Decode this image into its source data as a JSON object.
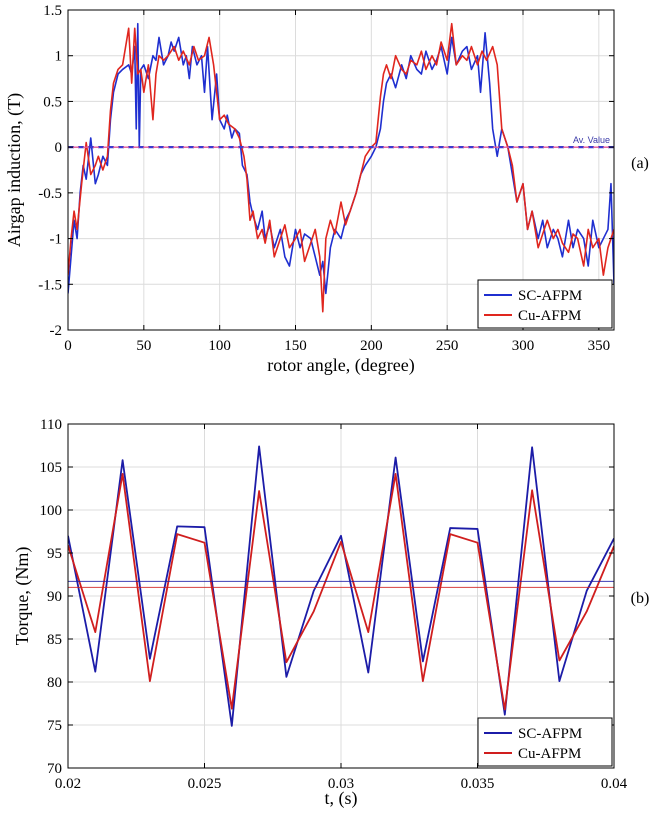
{
  "chart_data": [
    {
      "type": "line",
      "panel_label": "(a)",
      "xlabel": "rotor angle, (degree)",
      "ylabel": "Airgap induction, (T)",
      "xlim": [
        0,
        360
      ],
      "ylim": [
        -2,
        1.5
      ],
      "xticks": [
        0,
        50,
        100,
        150,
        200,
        250,
        300,
        350
      ],
      "yticks": [
        -2,
        -1.5,
        -1,
        -0.5,
        0,
        0.5,
        1,
        1.5
      ],
      "xtick_labels": [
        "0",
        "50",
        "100",
        "150",
        "200",
        "250",
        "300",
        "350"
      ],
      "ytick_labels": [
        "-2",
        "-1.5",
        "-1",
        "-0.5",
        "0",
        "0.5",
        "1",
        "1.5"
      ],
      "grid": true,
      "legend": "bottom-right",
      "annotation": "Av. Value",
      "average_line": {
        "y": 0
      },
      "series": [
        {
          "name": "SC-AFPM",
          "color": "#1f2fd0",
          "x": [
            0,
            2,
            4,
            6,
            8,
            10,
            12,
            15,
            18,
            20,
            23,
            26,
            28,
            30,
            33,
            36,
            40,
            42,
            44,
            45,
            46,
            47,
            48,
            50,
            53,
            56,
            58,
            60,
            63,
            66,
            68,
            70,
            73,
            76,
            78,
            80,
            82,
            85,
            88,
            90,
            92,
            95,
            98,
            100,
            103,
            105,
            108,
            110,
            113,
            115,
            118,
            120,
            122,
            125,
            128,
            130,
            133,
            136,
            140,
            143,
            146,
            150,
            153,
            156,
            160,
            163,
            166,
            168,
            170,
            173,
            176,
            180,
            183,
            186,
            190,
            193,
            196,
            200,
            203,
            206,
            208,
            210,
            213,
            216,
            220,
            223,
            226,
            230,
            233,
            236,
            240,
            243,
            246,
            250,
            253,
            256,
            260,
            263,
            266,
            270,
            272,
            275,
            278,
            280,
            283,
            286,
            290,
            293,
            296,
            300,
            303,
            306,
            310,
            313,
            316,
            320,
            323,
            326,
            330,
            333,
            336,
            340,
            343,
            346,
            350,
            353,
            356,
            358,
            360
          ],
          "y": [
            -1.6,
            -1.2,
            -0.8,
            -1.0,
            -0.5,
            -0.2,
            -0.35,
            0.1,
            -0.4,
            -0.3,
            -0.1,
            -0.2,
            0.3,
            0.6,
            0.8,
            0.85,
            0.9,
            0.8,
            1.1,
            0.2,
            1.35,
            0.0,
            0.85,
            0.9,
            0.75,
            1.0,
            0.95,
            1.2,
            0.9,
            1.0,
            1.15,
            1.05,
            1.2,
            0.9,
            1.0,
            0.75,
            1.1,
            0.9,
            1.0,
            0.6,
            1.1,
            0.3,
            0.8,
            0.3,
            0.2,
            0.35,
            0.1,
            0.2,
            0.15,
            -0.2,
            -0.3,
            -0.6,
            -0.75,
            -0.9,
            -0.7,
            -1.0,
            -0.85,
            -1.1,
            -0.9,
            -1.2,
            -1.3,
            -0.9,
            -1.1,
            -0.95,
            -1.0,
            -1.2,
            -1.4,
            -1.25,
            -1.6,
            -1.1,
            -0.9,
            -1.0,
            -0.8,
            -0.7,
            -0.5,
            -0.3,
            -0.2,
            -0.1,
            0.0,
            0.2,
            0.5,
            0.7,
            0.8,
            0.65,
            0.9,
            0.75,
            1.0,
            0.85,
            0.8,
            1.05,
            0.85,
            0.95,
            1.1,
            0.8,
            1.2,
            0.9,
            1.05,
            1.1,
            0.85,
            1.0,
            0.6,
            1.25,
            0.7,
            0.2,
            -0.1,
            0.2,
            0.0,
            -0.3,
            -0.6,
            -0.4,
            -0.9,
            -0.7,
            -1.0,
            -0.8,
            -1.1,
            -0.9,
            -1.0,
            -1.2,
            -0.8,
            -1.1,
            -0.9,
            -1.0,
            -1.3,
            -0.8,
            -1.1,
            -1.0,
            -0.9,
            -0.4,
            -1.5
          ]
        },
        {
          "name": "Cu-AFPM",
          "color": "#e0261e",
          "x": [
            0,
            2,
            4,
            6,
            9,
            12,
            15,
            18,
            20,
            23,
            26,
            28,
            30,
            33,
            36,
            38,
            40,
            42,
            44,
            46,
            48,
            50,
            53,
            56,
            58,
            60,
            63,
            66,
            70,
            73,
            76,
            80,
            83,
            86,
            90,
            93,
            96,
            100,
            103,
            106,
            110,
            113,
            116,
            118,
            120,
            122,
            125,
            128,
            130,
            133,
            136,
            140,
            143,
            146,
            150,
            153,
            156,
            160,
            163,
            166,
            168,
            170,
            173,
            176,
            180,
            183,
            186,
            190,
            193,
            196,
            200,
            203,
            206,
            208,
            210,
            213,
            216,
            220,
            223,
            226,
            230,
            233,
            236,
            240,
            243,
            246,
            250,
            253,
            256,
            260,
            263,
            266,
            270,
            273,
            276,
            280,
            283,
            286,
            290,
            293,
            296,
            300,
            303,
            306,
            310,
            313,
            316,
            320,
            323,
            326,
            330,
            333,
            336,
            340,
            343,
            346,
            350,
            353,
            356,
            360
          ],
          "y": [
            -1.4,
            -1.0,
            -0.7,
            -0.9,
            -0.4,
            0.05,
            -0.3,
            -0.2,
            -0.1,
            -0.25,
            -0.1,
            0.4,
            0.7,
            0.85,
            0.9,
            1.1,
            1.3,
            0.7,
            1.3,
            0.8,
            0.85,
            0.6,
            0.9,
            0.3,
            0.8,
            1.0,
            0.95,
            1.0,
            1.1,
            0.95,
            1.05,
            0.9,
            1.1,
            0.95,
            1.0,
            1.2,
            0.9,
            0.3,
            0.35,
            0.25,
            0.2,
            0.1,
            -0.1,
            -0.35,
            -0.8,
            -0.7,
            -1.0,
            -0.9,
            -1.05,
            -0.8,
            -1.2,
            -1.0,
            -0.85,
            -1.1,
            -1.0,
            -0.9,
            -1.25,
            -1.05,
            -0.9,
            -1.2,
            -1.8,
            -1.0,
            -0.8,
            -0.95,
            -0.6,
            -0.85,
            -0.7,
            -0.5,
            -0.3,
            -0.1,
            0.0,
            0.05,
            0.55,
            0.8,
            0.9,
            0.75,
            1.0,
            0.85,
            0.8,
            0.95,
            0.9,
            1.05,
            0.85,
            1.0,
            0.9,
            1.15,
            0.95,
            1.35,
            0.9,
            1.0,
            0.95,
            1.1,
            0.9,
            1.05,
            0.95,
            1.1,
            0.9,
            0.2,
            0.0,
            -0.2,
            -0.6,
            -0.4,
            -0.9,
            -0.7,
            -1.1,
            -0.95,
            -0.8,
            -1.0,
            -0.9,
            -1.05,
            -1.15,
            -0.95,
            -1.0,
            -1.3,
            -0.9,
            -1.1,
            -1.0,
            -1.4,
            -1.1,
            -0.9
          ]
        }
      ]
    },
    {
      "type": "line",
      "panel_label": "(b)",
      "xlabel": "t, (s)",
      "ylabel": "Torque, (Nm)",
      "xlim": [
        0.02,
        0.04
      ],
      "ylim": [
        70,
        110
      ],
      "xticks": [
        0.02,
        0.025,
        0.03,
        0.035,
        0.04
      ],
      "yticks": [
        70,
        75,
        80,
        85,
        90,
        95,
        100,
        105,
        110
      ],
      "xtick_labels": [
        "0.02",
        "0.025",
        "0.03",
        "0.035",
        "0.04"
      ],
      "ytick_labels": [
        "70",
        "75",
        "80",
        "85",
        "90",
        "95",
        "100",
        "105",
        "110"
      ],
      "grid": true,
      "legend": "bottom-right",
      "averages": [
        {
          "series": "SC-AFPM",
          "y": 91.7
        },
        {
          "series": "Cu-AFPM",
          "y": 91.0
        }
      ],
      "series": [
        {
          "name": "SC-AFPM",
          "color": "#1c1ca8",
          "x": [
            0.02,
            0.021,
            0.022,
            0.023,
            0.024,
            0.025,
            0.026,
            0.027,
            0.028,
            0.029,
            0.03,
            0.031,
            0.032,
            0.033,
            0.034,
            0.035,
            0.036,
            0.037,
            0.038,
            0.039,
            0.04
          ],
          "y": [
            97.0,
            81.2,
            105.8,
            82.7,
            98.1,
            98.0,
            74.9,
            107.4,
            80.6,
            90.6,
            97.0,
            81.1,
            106.1,
            82.4,
            97.9,
            97.8,
            76.2,
            107.3,
            80.1,
            90.6,
            96.7
          ]
        },
        {
          "name": "Cu-AFPM",
          "color": "#d01e1e",
          "x": [
            0.02,
            0.021,
            0.022,
            0.023,
            0.024,
            0.025,
            0.026,
            0.027,
            0.028,
            0.029,
            0.03,
            0.031,
            0.032,
            0.033,
            0.034,
            0.035,
            0.036,
            0.037,
            0.038,
            0.039,
            0.04
          ],
          "y": [
            95.9,
            85.8,
            104.2,
            80.1,
            97.2,
            96.2,
            76.9,
            102.2,
            82.3,
            88.2,
            96.3,
            85.8,
            104.2,
            80.1,
            97.2,
            96.2,
            76.8,
            102.3,
            82.5,
            88.2,
            95.8
          ]
        }
      ]
    }
  ]
}
